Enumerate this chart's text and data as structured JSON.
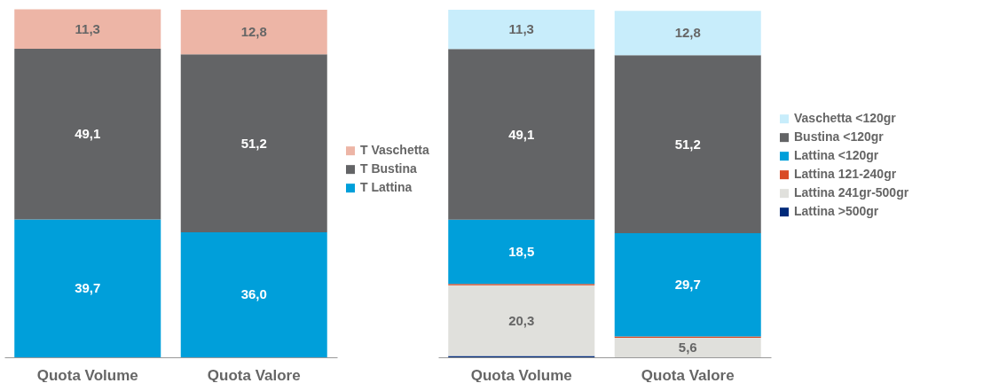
{
  "chart_data": [
    {
      "type": "bar",
      "stacked": true,
      "categories": [
        "Quota Volume",
        "Quota Valore"
      ],
      "ylim": [
        0,
        100
      ],
      "tick_labels": "x",
      "legend": "right",
      "series": [
        {
          "name": "T Lattina",
          "color": "#009fda",
          "values": [
            39.7,
            36.0
          ],
          "value_labels": [
            "39,7",
            "36,0"
          ]
        },
        {
          "name": "T Bustina",
          "color": "#636466",
          "values": [
            49.1,
            51.2
          ],
          "value_labels": [
            "49,1",
            "51,2"
          ]
        },
        {
          "name": "T Vaschetta",
          "color": "#edb5a6",
          "values": [
            11.3,
            12.8
          ],
          "value_labels": [
            "11,3",
            "12,8"
          ]
        }
      ]
    },
    {
      "type": "bar",
      "stacked": true,
      "categories": [
        "Quota Volume",
        "Quota Valore"
      ],
      "ylim": [
        0,
        100
      ],
      "tick_labels": "x",
      "legend": "right",
      "series": [
        {
          "name": "Lattina >500gr",
          "color": "#002a7a",
          "values": [
            0.4,
            0.0
          ],
          "value_labels": [
            null,
            null
          ]
        },
        {
          "name": "Lattina 241gr-500gr",
          "color": "#e0e0dc",
          "values": [
            20.3,
            5.6
          ],
          "value_labels": [
            "20,3",
            "5,6"
          ]
        },
        {
          "name": "Lattina 121-240gr",
          "color": "#d94a25",
          "values": [
            0.4,
            0.4
          ],
          "value_labels": [
            null,
            null
          ]
        },
        {
          "name": "Lattina <120gr",
          "color": "#009fda",
          "values": [
            18.5,
            29.7
          ],
          "value_labels": [
            "18,5",
            "29,7"
          ]
        },
        {
          "name": "Bustina <120gr",
          "color": "#636466",
          "values": [
            49.1,
            51.2
          ],
          "value_labels": [
            "49,1",
            "51,2"
          ]
        },
        {
          "name": "Vaschetta <120gr",
          "color": "#c8edfb",
          "values": [
            11.3,
            12.8
          ],
          "value_labels": [
            "11,3",
            "12,8"
          ]
        }
      ]
    }
  ]
}
